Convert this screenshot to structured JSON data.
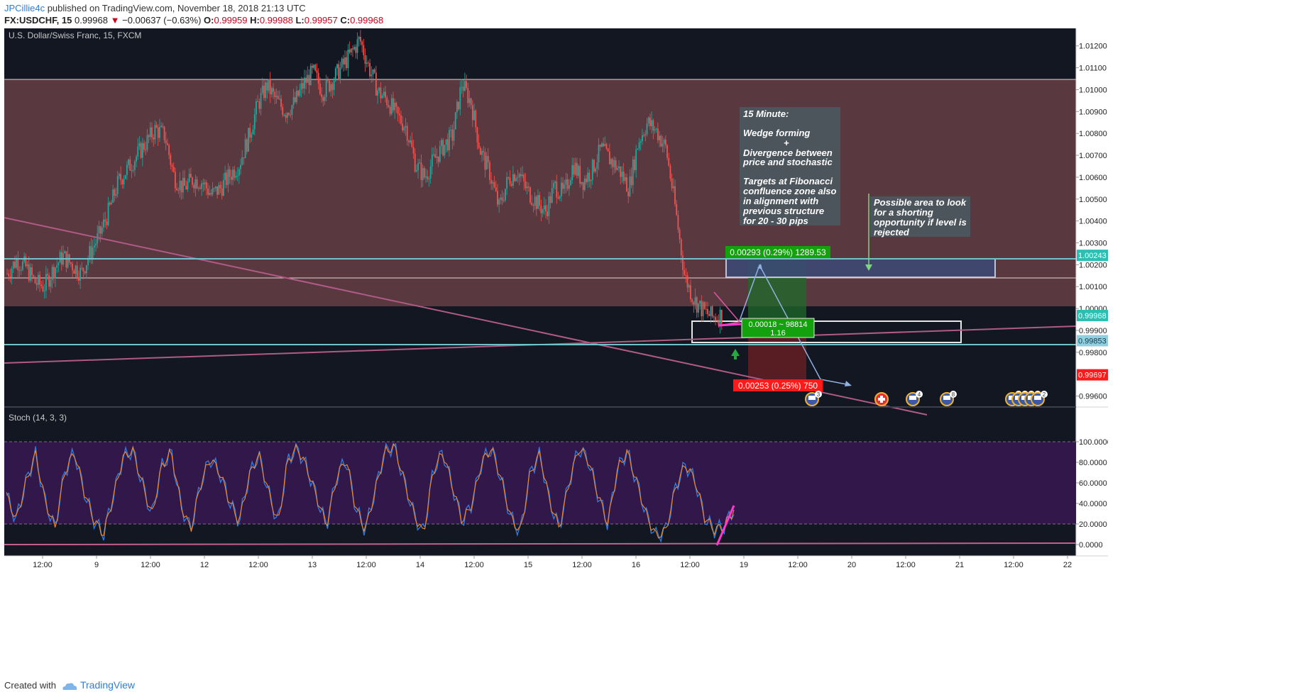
{
  "header": {
    "user": "JPCillie4c",
    "published": "published on TradingView.com, November 18, 2018 21:13 UTC",
    "symbol": "FX:USDCHF, 15",
    "price": "0.99968",
    "change": "−0.00637 (−0.63%)",
    "o_label": "O:",
    "o": "0.99959",
    "h_label": "H:",
    "h": "0.99988",
    "l_label": "L:",
    "l": "0.99957",
    "c_label": "C:",
    "c": "0.99968"
  },
  "footer": {
    "created_with": "Created with",
    "brand": "TradingView"
  },
  "colors": {
    "bg": "#131722",
    "up": "#26a69a",
    "down": "#ef5350",
    "zone": "#5a3840",
    "trend": "#b05a86",
    "cyan": "#6fc3c8",
    "stoch_k": "#2e7de0",
    "stoch_d": "#f08a2c",
    "stoch_band": "#32184a"
  },
  "chart_data": [
    {
      "type": "candlestick",
      "title": "U.S. Dollar/Swiss Franc, 15, FXCM",
      "xlabel": "",
      "ylabel": "",
      "x_ticks": [
        "12:00",
        "9",
        "12:00",
        "12",
        "12:00",
        "13",
        "12:00",
        "14",
        "12:00",
        "15",
        "12:00",
        "16",
        "12:00",
        "19",
        "12:00",
        "20",
        "12:00",
        "21",
        "12:00",
        "22"
      ],
      "y_ticks": [
        "1.01200",
        "1.01100",
        "1.01000",
        "1.00900",
        "1.00800",
        "1.00700",
        "1.00600",
        "1.00500",
        "1.00400",
        "1.00300",
        "1.00200",
        "1.00100",
        "1.00000",
        "0.99900",
        "0.99800",
        "0.99600"
      ],
      "ylim": [
        0.9955,
        1.0128
      ],
      "series": [
        {
          "values": [
            1.0016,
            1.0022,
            1.0019,
            1.0012,
            1.001,
            1.0018,
            1.0024,
            1.002,
            1.0016,
            1.0026,
            1.0034,
            1.0045,
            1.0058,
            1.0064,
            1.007,
            1.0076,
            1.0082,
            1.0079,
            1.006,
            1.0055,
            1.0059,
            1.0058,
            1.0052,
            1.0055,
            1.0061,
            1.0066,
            1.0078,
            1.0093,
            1.0102,
            1.0095,
            1.009,
            1.0094,
            1.0103,
            1.0108,
            1.0099,
            1.0104,
            1.011,
            1.0116,
            1.0123,
            1.011,
            1.0099,
            1.0095,
            1.0088,
            1.0083,
            1.0066,
            1.006,
            1.0068,
            1.0074,
            1.0079,
            1.0103,
            1.0094,
            1.0072,
            1.0062,
            1.0046,
            1.0059,
            1.0063,
            1.0054,
            1.0049,
            1.0044,
            1.0056,
            1.0052,
            1.0066,
            1.0058,
            1.0063,
            1.0073,
            1.0068,
            1.0063,
            1.0055,
            1.0076,
            1.0085,
            1.0081,
            1.0073,
            1.0046,
            1.0015,
            1.0004,
            0.9999,
            0.9996,
            0.9997
          ]
        }
      ],
      "price_labels": [
        "1.00243",
        "0.99968",
        "0.99853",
        "0.99697"
      ],
      "annotations": [
        "15 Minute:",
        "Wedge forming",
        "+",
        "Divergence between price and stochastic",
        "Targets at Fibonacci confluence zone also in alignment with previous structure for 20 - 30 pips",
        "Possible area to look for a shorting opportunity if level is rejected"
      ],
      "position_labels": {
        "target": "0.00293 (0.29%) 1289.53",
        "entry_line1": "0.00018 ~ 98814",
        "entry_line2": "1.16",
        "stop": "0.00253 (0.25%) 750"
      },
      "event_badges": [
        "3",
        "4",
        "8",
        "5",
        "7",
        "8",
        "6",
        "2"
      ],
      "grid": false
    },
    {
      "type": "line",
      "title": "Stoch (14, 3, 3)",
      "xlabel": "",
      "ylabel": "",
      "y_ticks": [
        "100.0000",
        "80.0000",
        "60.0000",
        "40.0000",
        "20.0000",
        "0.0000"
      ],
      "ylim": [
        -5,
        105
      ],
      "band": [
        20,
        80
      ],
      "series": [
        {
          "values": [
            48,
            24,
            60,
            88,
            42,
            16,
            70,
            90,
            52,
            24,
            10,
            46,
            84,
            92,
            60,
            28,
            76,
            90,
            38,
            14,
            58,
            84,
            70,
            42,
            22,
            66,
            88,
            52,
            20,
            82,
            94,
            74,
            46,
            18,
            64,
            84,
            36,
            14,
            52,
            90,
            96,
            62,
            30,
            10,
            72,
            90,
            56,
            22,
            40,
            80,
            94,
            64,
            26,
            12,
            70,
            88,
            42,
            16,
            60,
            94,
            82,
            48,
            20,
            74,
            90,
            60,
            28,
            8,
            14,
            56,
            78,
            62,
            26,
            14,
            18,
            34
          ]
        }
      ]
    }
  ]
}
